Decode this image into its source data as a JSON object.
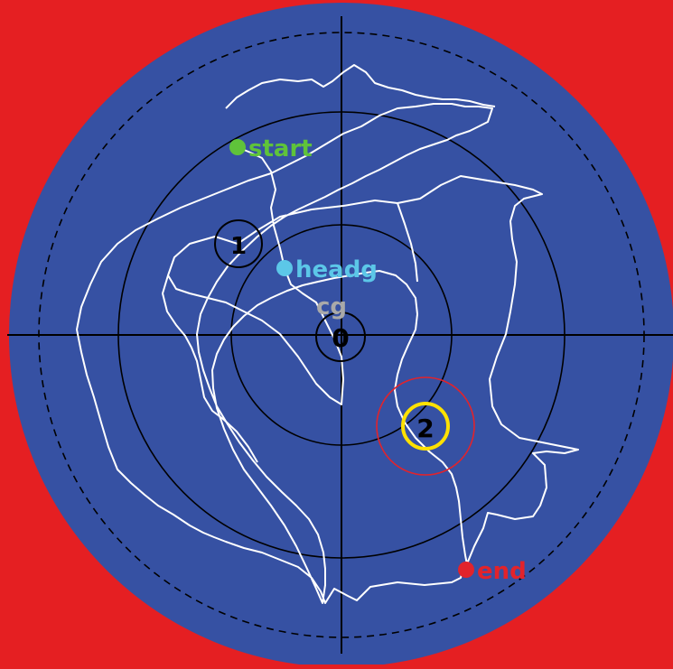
{
  "colors": {
    "background": "#e51f22",
    "arena": "#3651a3",
    "rings": "#000000",
    "path": "#ffffff",
    "start": "#5fc33a",
    "headg": "#5cc7e8",
    "cg": "#a9a9a9",
    "end": "#e2232b",
    "target_ring": "#ffe100",
    "target_zone": "#e2232b"
  },
  "markers": {
    "start": {
      "label": "start"
    },
    "headg": {
      "label": "headg"
    },
    "cg": {
      "label": "cg"
    },
    "end": {
      "label": "end"
    }
  },
  "platforms": [
    {
      "label": "0"
    },
    {
      "label": "1"
    },
    {
      "label": "2"
    }
  ]
}
